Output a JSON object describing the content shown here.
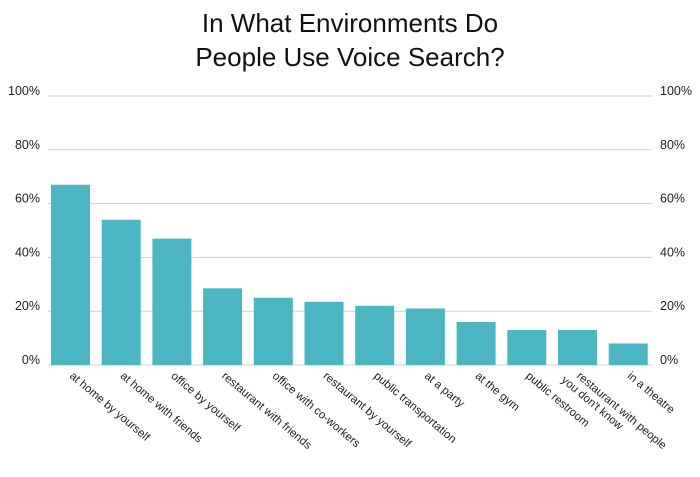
{
  "chart_data": {
    "type": "bar",
    "title_lines": [
      "In What Environments Do",
      "People Use Voice Search?"
    ],
    "categories": [
      "at home by yourself",
      "at home with friends",
      "office by yourself",
      "restaurant with friends",
      "office with co-workers",
      "restaurant by yourself",
      "public transportation",
      "at a party",
      "at the gym",
      "public restroom",
      "restaurant with people you don't know",
      "in a theatre"
    ],
    "category_lines": [
      [
        "at home by yourself"
      ],
      [
        "at home with friends"
      ],
      [
        "office by yourself"
      ],
      [
        "restaurant with friends"
      ],
      [
        "office with co-workers"
      ],
      [
        "restaurant by yourself"
      ],
      [
        "public transportation"
      ],
      [
        "at a party"
      ],
      [
        "at the gym"
      ],
      [
        "public restroom"
      ],
      [
        "restaurant with people",
        "you don't know"
      ],
      [
        "in a theatre"
      ]
    ],
    "values": [
      67,
      54,
      47,
      28.5,
      25,
      23.5,
      22,
      21,
      16,
      13,
      13,
      8
    ],
    "ylim": [
      0,
      100
    ],
    "yticks": [
      0,
      20,
      40,
      60,
      80,
      100
    ],
    "ytick_labels": [
      "0%",
      "20%",
      "40%",
      "60%",
      "80%",
      "100%"
    ],
    "y_axis_both_sides": true,
    "grid": true,
    "bar_color": "#4bb6c2",
    "grid_color": "#d0d0d0",
    "xlabel": "",
    "ylabel": ""
  }
}
